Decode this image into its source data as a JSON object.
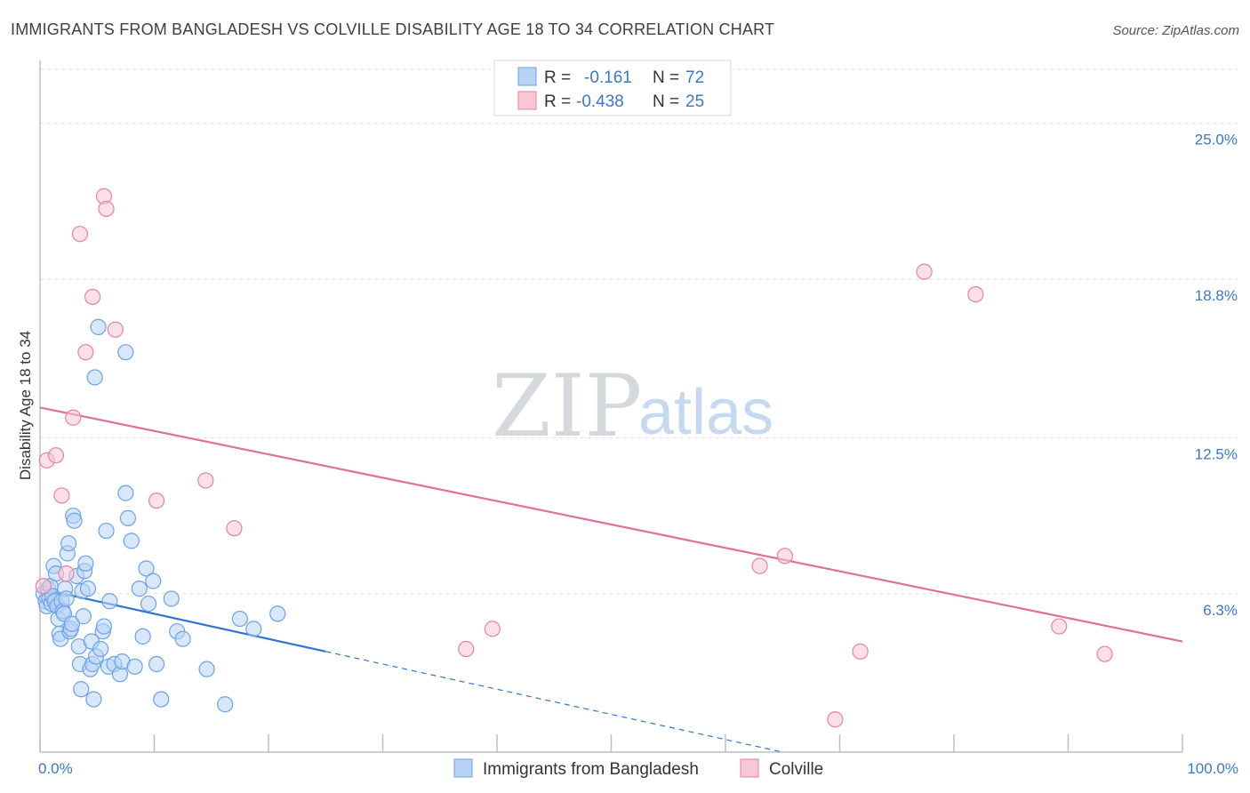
{
  "chart_data": {
    "type": "scatter",
    "title": "IMMIGRANTS FROM BANGLADESH VS COLVILLE DISABILITY AGE 18 TO 34 CORRELATION CHART",
    "source": "Source: ZipAtlas.com",
    "watermark": {
      "zip": "ZIP",
      "atlas": "atlas"
    },
    "ylabel": "Disability Age 18 to 34",
    "xlim": [
      0,
      100
    ],
    "ylim": [
      0,
      27.5
    ],
    "xtick_labels": [
      {
        "value": 0,
        "label": "0.0%"
      },
      {
        "value": 100,
        "label": "100.0%"
      }
    ],
    "ytick_labels": [
      {
        "value": 6.3,
        "label": "6.3%"
      },
      {
        "value": 12.5,
        "label": "12.5%"
      },
      {
        "value": 18.8,
        "label": "18.8%"
      },
      {
        "value": 25.0,
        "label": "25.0%"
      }
    ],
    "grid": true,
    "legend": {
      "placement": "top-center",
      "rows": [
        {
          "r_label": "R =",
          "r_value": "-0.161",
          "n_label": "N =",
          "n_value": "72"
        },
        {
          "r_label": "R =",
          "r_value": "-0.438",
          "n_label": "N =",
          "n_value": "25"
        }
      ]
    },
    "series": [
      {
        "name": "Immigrants from Bangladesh",
        "color": "#6aa3e8",
        "fill": "#b8d3f4",
        "trend": {
          "x0": 0,
          "y0": 6.5,
          "x1": 25,
          "y1": 4.0,
          "dashed_to_x": 65
        },
        "points": [
          [
            0.3,
            6.3
          ],
          [
            0.5,
            6.0
          ],
          [
            0.6,
            5.8
          ],
          [
            0.7,
            6.5
          ],
          [
            0.8,
            6.1
          ],
          [
            0.9,
            6.6
          ],
          [
            1.0,
            5.9
          ],
          [
            1.1,
            6.2
          ],
          [
            1.2,
            7.4
          ],
          [
            1.3,
            6.0
          ],
          [
            1.4,
            7.1
          ],
          [
            1.5,
            5.8
          ],
          [
            1.6,
            5.3
          ],
          [
            1.7,
            4.7
          ],
          [
            1.8,
            4.5
          ],
          [
            1.9,
            6.0
          ],
          [
            2.0,
            5.6
          ],
          [
            2.1,
            5.5
          ],
          [
            2.2,
            6.5
          ],
          [
            2.3,
            6.1
          ],
          [
            2.4,
            7.9
          ],
          [
            2.5,
            8.3
          ],
          [
            2.6,
            4.8
          ],
          [
            2.7,
            4.9
          ],
          [
            2.8,
            5.1
          ],
          [
            2.9,
            9.4
          ],
          [
            3.0,
            9.2
          ],
          [
            3.2,
            7.0
          ],
          [
            3.4,
            4.2
          ],
          [
            3.5,
            3.5
          ],
          [
            3.6,
            2.5
          ],
          [
            3.7,
            6.4
          ],
          [
            3.8,
            5.4
          ],
          [
            3.9,
            7.2
          ],
          [
            4.0,
            7.5
          ],
          [
            4.2,
            6.5
          ],
          [
            4.4,
            3.3
          ],
          [
            4.5,
            4.4
          ],
          [
            4.6,
            3.5
          ],
          [
            4.7,
            2.1
          ],
          [
            4.8,
            14.9
          ],
          [
            4.9,
            3.8
          ],
          [
            5.1,
            16.9
          ],
          [
            5.3,
            4.1
          ],
          [
            5.5,
            4.8
          ],
          [
            5.8,
            8.8
          ],
          [
            6.0,
            3.4
          ],
          [
            6.1,
            6.0
          ],
          [
            6.5,
            3.5
          ],
          [
            7.0,
            3.1
          ],
          [
            7.2,
            3.6
          ],
          [
            7.5,
            10.3
          ],
          [
            7.7,
            9.3
          ],
          [
            8.0,
            8.4
          ],
          [
            8.3,
            3.4
          ],
          [
            8.7,
            6.5
          ],
          [
            9.0,
            4.6
          ],
          [
            9.3,
            7.3
          ],
          [
            9.5,
            5.9
          ],
          [
            9.9,
            6.8
          ],
          [
            10.2,
            3.5
          ],
          [
            10.6,
            2.1
          ],
          [
            11.5,
            6.1
          ],
          [
            12.0,
            4.8
          ],
          [
            12.5,
            4.5
          ],
          [
            14.6,
            3.3
          ],
          [
            16.2,
            1.9
          ],
          [
            17.5,
            5.3
          ],
          [
            18.7,
            4.9
          ],
          [
            20.8,
            5.5
          ],
          [
            7.5,
            15.9
          ],
          [
            5.6,
            5.0
          ]
        ]
      },
      {
        "name": "Colville",
        "color": "#e8829e",
        "fill": "#f8c6d4",
        "trend": {
          "x0": 0,
          "y0": 13.7,
          "x1": 100,
          "y1": 4.4
        },
        "points": [
          [
            0.3,
            6.6
          ],
          [
            0.6,
            11.6
          ],
          [
            1.4,
            11.8
          ],
          [
            1.9,
            10.2
          ],
          [
            2.3,
            7.1
          ],
          [
            2.9,
            13.3
          ],
          [
            3.5,
            20.6
          ],
          [
            4.0,
            15.9
          ],
          [
            4.6,
            18.1
          ],
          [
            5.6,
            22.1
          ],
          [
            5.8,
            21.6
          ],
          [
            6.6,
            16.8
          ],
          [
            10.2,
            10.0
          ],
          [
            14.5,
            10.8
          ],
          [
            17.0,
            8.9
          ],
          [
            37.3,
            4.1
          ],
          [
            39.6,
            4.9
          ],
          [
            63.0,
            7.4
          ],
          [
            65.2,
            7.8
          ],
          [
            77.4,
            19.1
          ],
          [
            81.9,
            18.2
          ],
          [
            89.2,
            5.0
          ],
          [
            93.2,
            3.9
          ],
          [
            69.6,
            1.3
          ],
          [
            71.8,
            4.0
          ]
        ]
      }
    ]
  }
}
